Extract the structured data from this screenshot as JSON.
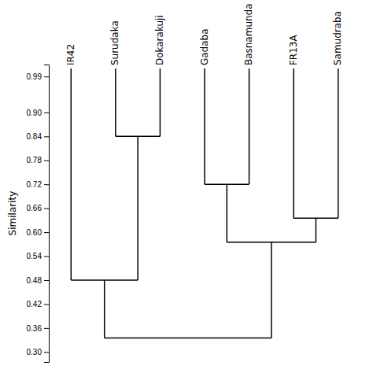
{
  "chart_data": {
    "type": "dendrogram",
    "ylabel": "Similarity",
    "categories": [
      "IR42",
      "Surudaka",
      "Dokarakuji",
      "Gadaba",
      "Basnamunda",
      "FR13A",
      "Samudraba"
    ],
    "leaf_height": 1.01,
    "merges": [
      {
        "left": 1,
        "right": 2,
        "value": 0.84
      },
      {
        "left": 0,
        "right": 7,
        "value": 0.48
      },
      {
        "left": 3,
        "right": 4,
        "value": 0.72
      },
      {
        "left": 5,
        "right": 6,
        "value": 0.635
      },
      {
        "left": 9,
        "right": 10,
        "value": 0.575
      },
      {
        "left": 8,
        "right": 11,
        "value": 0.335
      }
    ],
    "ylim": [
      0.275,
      1.02
    ],
    "yticks": [
      {
        "value": 0.3,
        "label": "0.30"
      },
      0.36,
      0.42,
      0.48,
      0.54,
      {
        "value": 0.6,
        "label": "0.60"
      },
      0.66,
      0.72,
      0.78,
      0.84,
      {
        "value": 0.9,
        "label": "0.90"
      },
      0.99
    ],
    "color": "#000000"
  }
}
